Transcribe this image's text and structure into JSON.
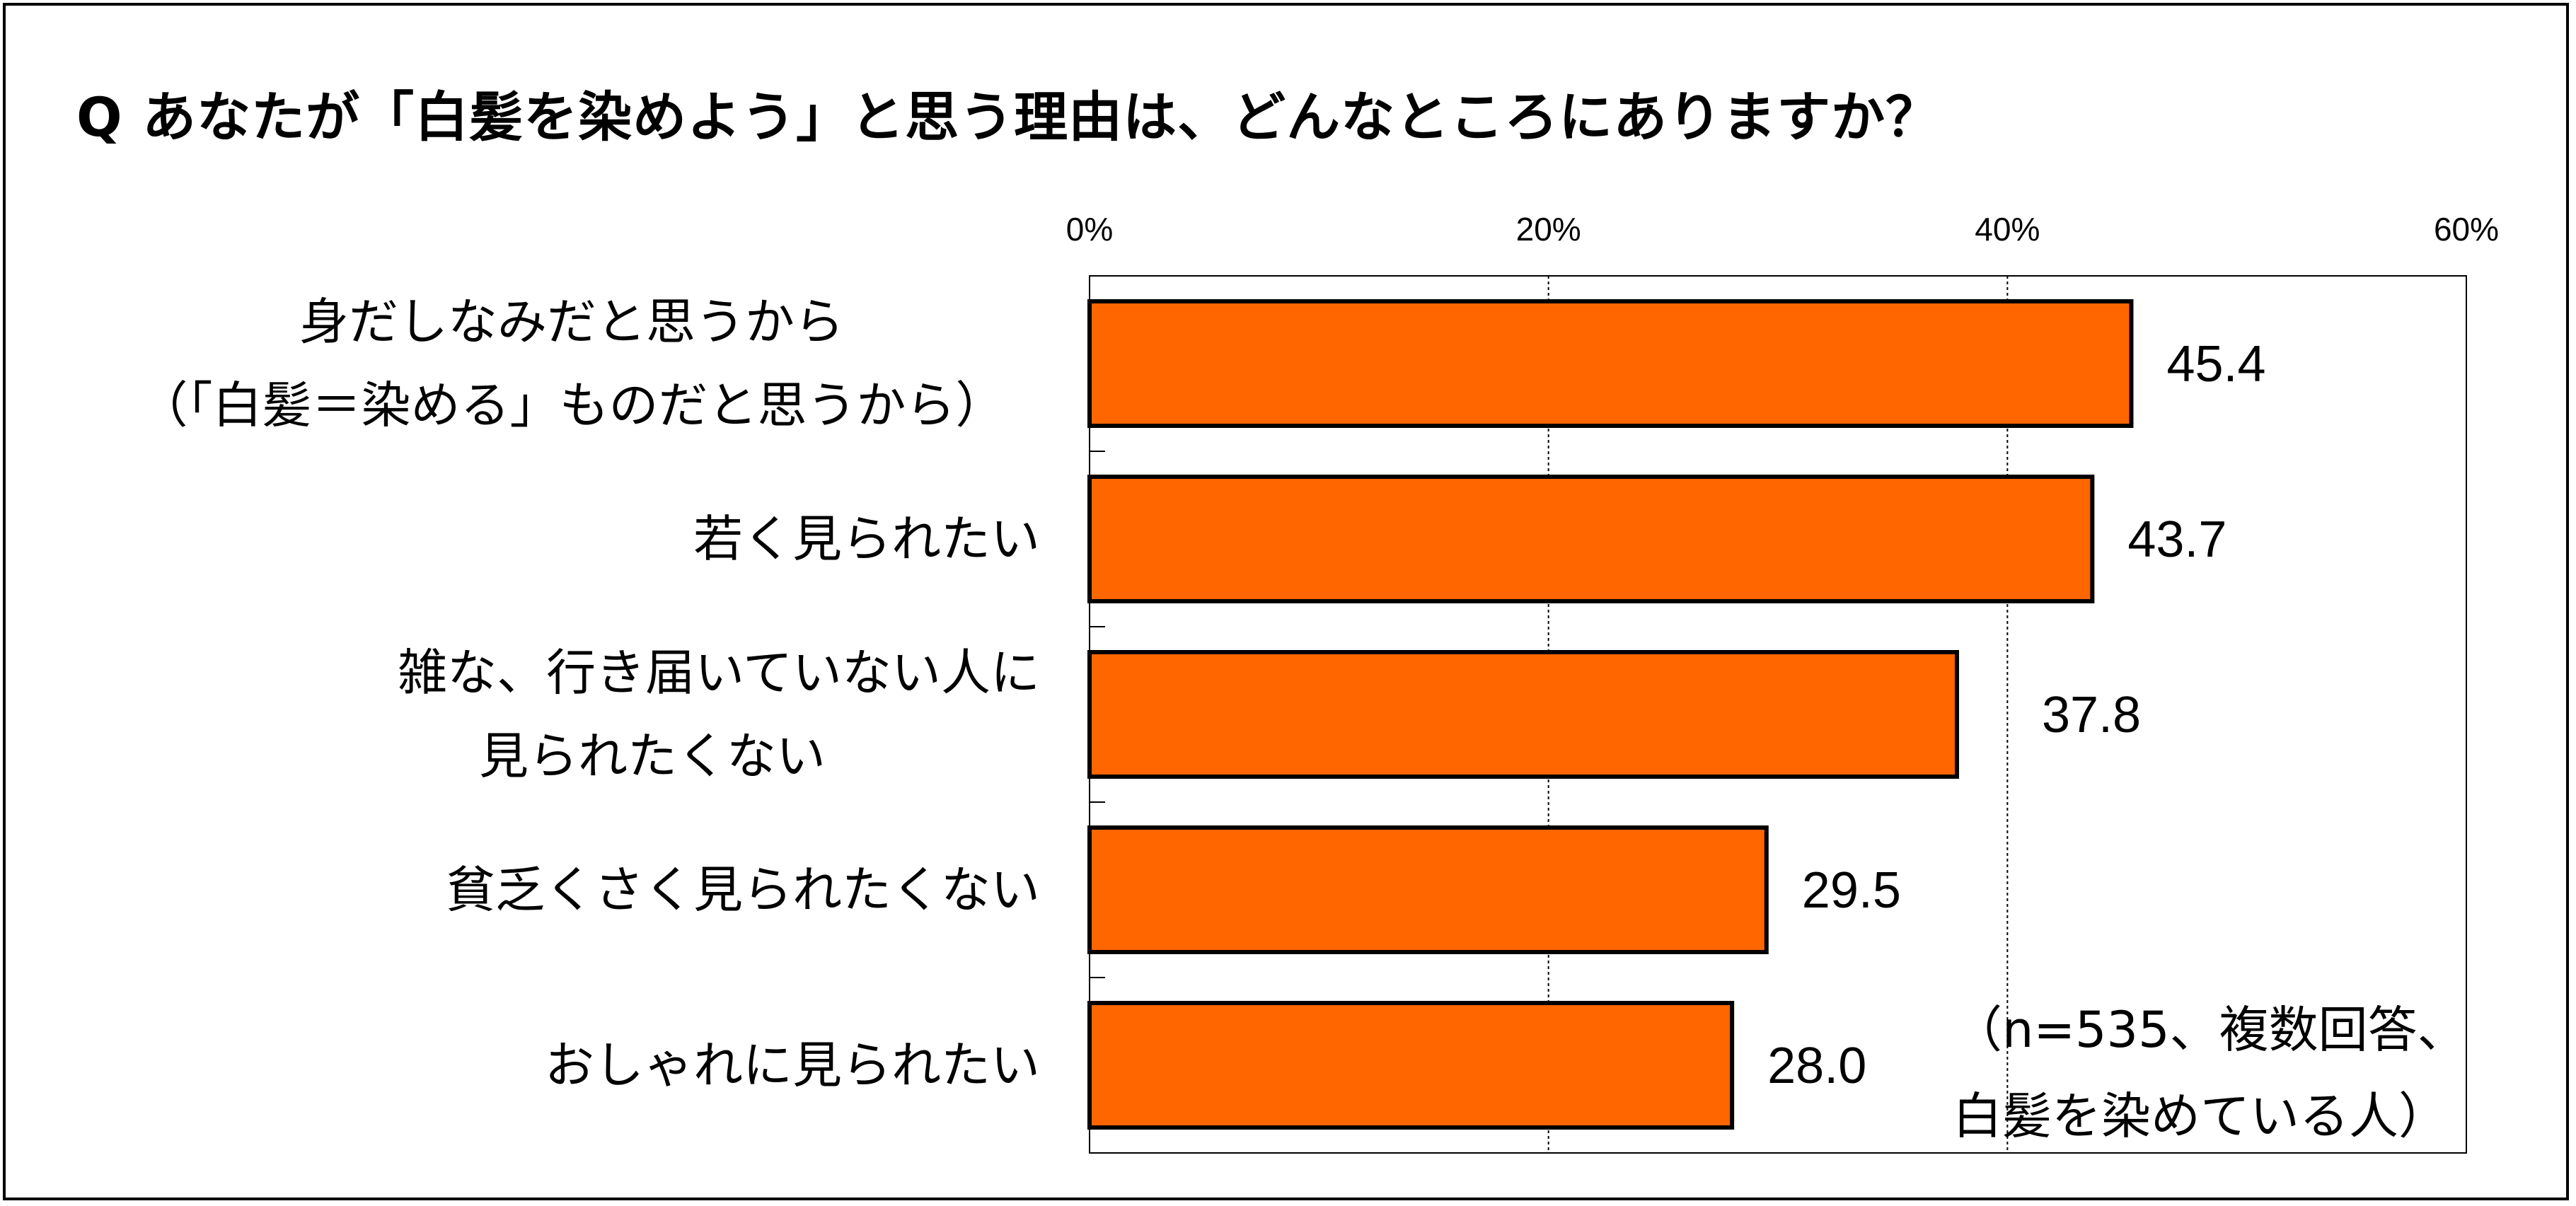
{
  "title": "Q あなたが「白髪を染めよう」と思う理由は、どんなところにありますか？",
  "note": {
    "line1": "（n=535、複数回答、",
    "line2": "白髪を染めている人）"
  },
  "colors": {
    "bar_fill": "#FF6600",
    "bar_stroke": "#000000",
    "grid": "#000000",
    "background": "#FFFFFF"
  },
  "chart_data": {
    "type": "bar",
    "orientation": "horizontal",
    "categories": [
      [
        "身だしなみだと思うから",
        "（「白髪＝染める」ものだと思うから）"
      ],
      [
        "若く見られたい"
      ],
      [
        "雑な、行き届いていない人に",
        "見られたくない"
      ],
      [
        "貧乏くさく見られたくない"
      ],
      [
        "おしゃれに見られたい"
      ]
    ],
    "values": [
      45.4,
      43.7,
      37.8,
      29.5,
      28.0
    ],
    "value_labels": [
      "45.4",
      "43.7",
      "37.8",
      "29.5",
      "28.0"
    ],
    "xlim": [
      0,
      60
    ],
    "xticks": [
      0,
      20,
      40,
      60
    ],
    "xtick_labels": [
      "0%",
      "20%",
      "40%",
      "60%"
    ],
    "xlabel": "",
    "ylabel": "",
    "grid": "vertical dashed at 20% and 40%",
    "axis_position": "top"
  }
}
